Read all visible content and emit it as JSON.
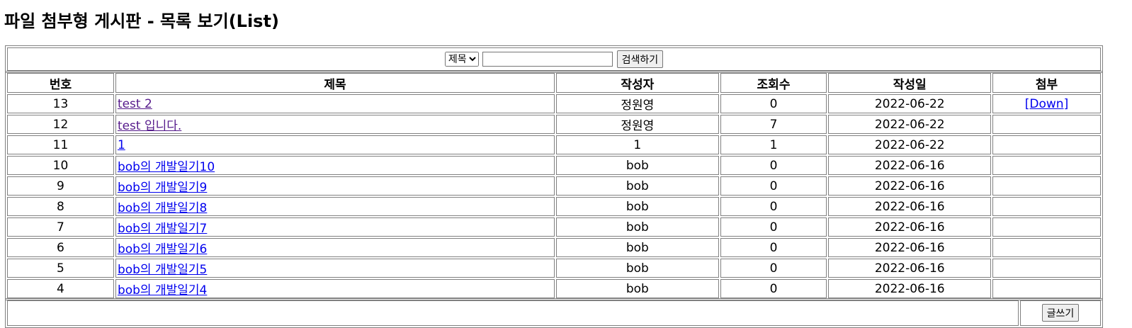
{
  "page": {
    "heading": "파일 첨부형 게시판 - 목록 보기(List)"
  },
  "search": {
    "selected_option": "제목",
    "query": "",
    "button_label": "검색하기"
  },
  "columns": [
    "번호",
    "제목",
    "작성자",
    "조회수",
    "작성일",
    "첨부"
  ],
  "rows": [
    {
      "num": "13",
      "title": "test 2",
      "author": "정원영",
      "views": "0",
      "date": "2022-06-22",
      "attach": "[Down]"
    },
    {
      "num": "12",
      "title": "test 입니다.",
      "author": "정원영",
      "views": "7",
      "date": "2022-06-22",
      "attach": ""
    },
    {
      "num": "11",
      "title": "1",
      "author": "1",
      "views": "1",
      "date": "2022-06-22",
      "attach": ""
    },
    {
      "num": "10",
      "title": "bob의 개발일기10",
      "author": "bob",
      "views": "0",
      "date": "2022-06-16",
      "attach": ""
    },
    {
      "num": "9",
      "title": "bob의 개발일기9",
      "author": "bob",
      "views": "0",
      "date": "2022-06-16",
      "attach": ""
    },
    {
      "num": "8",
      "title": "bob의 개발일기8",
      "author": "bob",
      "views": "0",
      "date": "2022-06-16",
      "attach": ""
    },
    {
      "num": "7",
      "title": "bob의 개발일기7",
      "author": "bob",
      "views": "0",
      "date": "2022-06-16",
      "attach": ""
    },
    {
      "num": "6",
      "title": "bob의 개발일기6",
      "author": "bob",
      "views": "0",
      "date": "2022-06-16",
      "attach": ""
    },
    {
      "num": "5",
      "title": "bob의 개발일기5",
      "author": "bob",
      "views": "0",
      "date": "2022-06-16",
      "attach": ""
    },
    {
      "num": "4",
      "title": "bob의 개발일기4",
      "author": "bob",
      "views": "0",
      "date": "2022-06-16",
      "attach": ""
    }
  ],
  "footer": {
    "write_button_label": "글쓰기"
  },
  "colors": {
    "visited_link": "#551a8b",
    "link": "#0000ee",
    "border": "#808080"
  }
}
